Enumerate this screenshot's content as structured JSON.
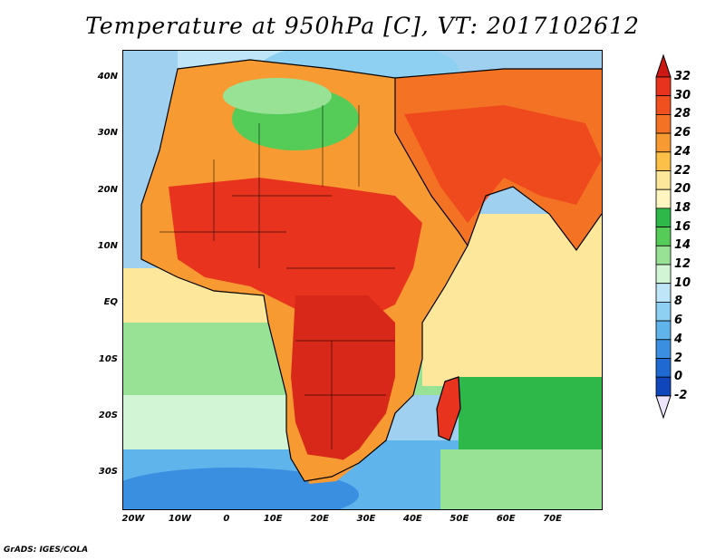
{
  "title": "Temperature at 950hPa [C], VT: 2017102612",
  "variable": "Temperature",
  "level": "950hPa",
  "units": "C",
  "valid_time": "2017102612",
  "credit": "GrADS: IGES/COLA",
  "axes": {
    "lat_labels": [
      "40N",
      "30N",
      "20N",
      "10N",
      "EQ",
      "10S",
      "20S",
      "30S"
    ],
    "lon_labels": [
      "20W",
      "10W",
      "0",
      "10E",
      "20E",
      "30E",
      "40E",
      "50E",
      "60E",
      "70E"
    ]
  },
  "colorbar": {
    "labels": [
      "32",
      "30",
      "28",
      "26",
      "24",
      "22",
      "20",
      "18",
      "16",
      "14",
      "12",
      "10",
      "8",
      "6",
      "4",
      "2",
      "0",
      "-2"
    ],
    "colors": [
      "#e8341e",
      "#f0501e",
      "#f47224",
      "#f89a32",
      "#fcc048",
      "#fde79a",
      "#fff5c0",
      "#2fb84a",
      "#56cc58",
      "#98e296",
      "#d2f5d6",
      "#bfe6f8",
      "#8ed0f2",
      "#5fb4ec",
      "#3a8fe0",
      "#1f6ad2",
      "#0f46bc",
      "#05308f",
      "#ede6fa"
    ]
  },
  "legend_colors": {
    "ocean_cool": "#9fd0f0",
    "ocean_cold": "#5fb4ec",
    "ocean_very_cold": "#3a8fe0",
    "ocean_warm": "#fde79a",
    "ocean_mild": "#d2f5d6",
    "ocean_green": "#2fb84a",
    "land_hot": "#d8281a",
    "land_warm": "#ee4a1e",
    "land_mild": "#f89a32",
    "land_cool": "#56cc58",
    "coast": "#000000"
  }
}
